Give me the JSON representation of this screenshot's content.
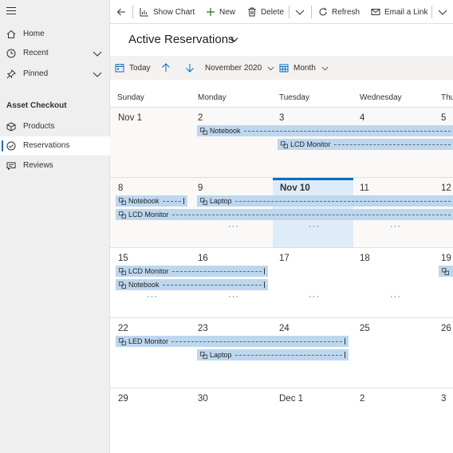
{
  "sidebar": {
    "items": [
      {
        "label": "Home",
        "icon": "home-icon"
      },
      {
        "label": "Recent",
        "icon": "clock-icon"
      },
      {
        "label": "Pinned",
        "icon": "pin-icon"
      }
    ],
    "group_title": "Asset Checkout",
    "group_items": [
      {
        "label": "Products",
        "icon": "cube-icon"
      },
      {
        "label": "Reservations",
        "icon": "check-circle-icon",
        "selected": true
      },
      {
        "label": "Reviews",
        "icon": "comment-icon"
      }
    ]
  },
  "commandbar": {
    "show_chart": "Show Chart",
    "new": "New",
    "delete": "Delete",
    "refresh": "Refresh",
    "email_link": "Email a Link"
  },
  "view": {
    "title": "Active Reservations"
  },
  "calendar_toolbar": {
    "today": "Today",
    "period": "November 2020",
    "mode": "Month"
  },
  "calendar": {
    "weekdays": [
      "Sunday",
      "Monday",
      "Tuesday",
      "Wednesday",
      "Thu"
    ],
    "weeks": [
      {
        "days": [
          "Nov 1",
          "2",
          "3",
          "4",
          "5"
        ]
      },
      {
        "days": [
          "8",
          "9",
          "Nov 10",
          "11",
          "12"
        ]
      },
      {
        "days": [
          "15",
          "16",
          "17",
          "18",
          "19"
        ]
      },
      {
        "days": [
          "22",
          "23",
          "24",
          "25",
          "26"
        ]
      },
      {
        "days": [
          "29",
          "30",
          "Dec 1",
          "2",
          "3"
        ]
      }
    ],
    "today": "Nov 10",
    "more_indicator": "···",
    "events": {
      "notebook": "Notebook",
      "lcd_monitor": "LCD Monitor",
      "laptop": "Laptop",
      "led_monitor": "LED Monitor"
    },
    "colors": {
      "event": "#bdd7ee",
      "accent": "#0f6cbd",
      "today": "#deecf9"
    }
  }
}
